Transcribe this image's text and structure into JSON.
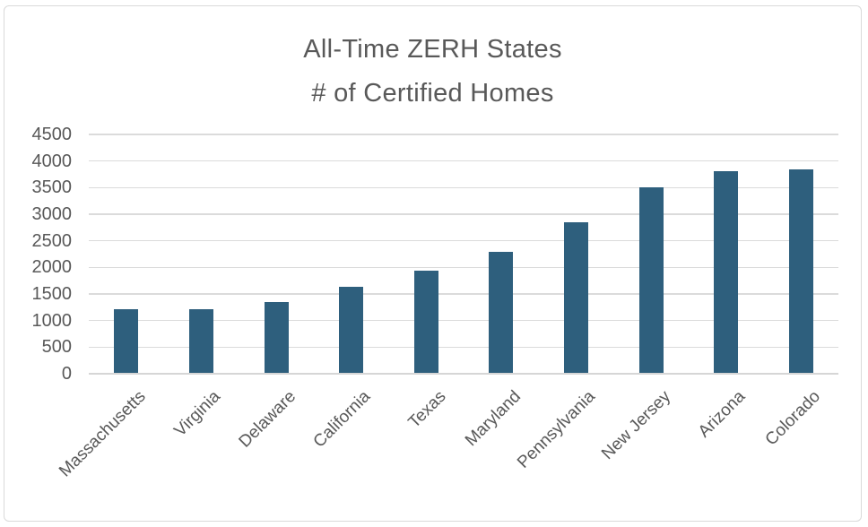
{
  "chart_data": {
    "type": "bar",
    "title_line1": "All-Time ZERH States",
    "title_line2": "# of Certified Homes",
    "categories": [
      "Massachusetts",
      "Virginia",
      "Delaware",
      "California",
      "Texas",
      "Maryland",
      "Pennsylvania",
      "New Jersey",
      "Arizona",
      "Colorado"
    ],
    "values": [
      1210,
      1220,
      1340,
      1640,
      1940,
      2300,
      2850,
      3500,
      3810,
      3850
    ],
    "xlabel": "",
    "ylabel": "",
    "ylim": [
      0,
      4500
    ],
    "ytick_step": 500,
    "yticks": [
      0,
      500,
      1000,
      1500,
      2000,
      2500,
      3000,
      3500,
      4000,
      4500
    ],
    "grid": true,
    "legend": false,
    "colors": {
      "bar": "#2E5F7D",
      "grid": "#DBDBDB",
      "axis_line": "#D6D6D6",
      "text": "#595959",
      "border": "#D9D9D9",
      "background": "#FFFFFF"
    }
  }
}
